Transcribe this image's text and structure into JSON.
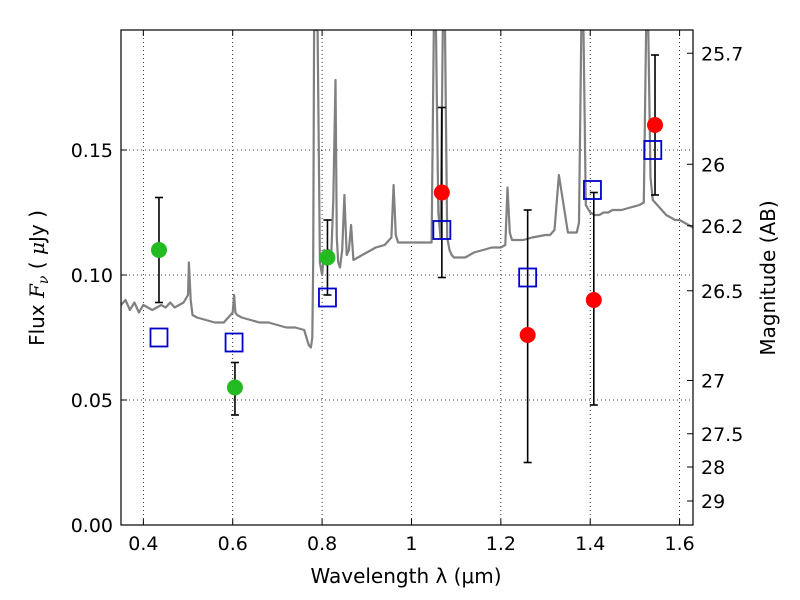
{
  "chart_data": {
    "type": "scatter",
    "title": "",
    "xlabel": "Wavelength  λ (μm)",
    "ylabel": "Flux  F_ν  ( μJy )",
    "ylabel_right": "Magnitude (AB)",
    "xlim": [
      0.35,
      1.63
    ],
    "ylim": [
      0.0,
      0.198
    ],
    "grid": true,
    "x_ticks": [
      0.4,
      0.6,
      0.8,
      1.0,
      1.2,
      1.4,
      1.6
    ],
    "x_tick_labels": [
      "0.4",
      "0.6",
      "0.8",
      "1",
      "1.2",
      "1.4",
      "1.6"
    ],
    "y_ticks": [
      0.0,
      0.05,
      0.1,
      0.15
    ],
    "y_tick_labels": [
      "0.00",
      "0.05",
      "0.10",
      "0.15"
    ],
    "right_ticks": [
      {
        "flux": 0.1887,
        "label": "25.7"
      },
      {
        "flux": 0.1443,
        "label": "26"
      },
      {
        "flux": 0.1197,
        "label": "26.2"
      },
      {
        "flux": 0.0937,
        "label": "26.5"
      },
      {
        "flux": 0.0578,
        "label": "27"
      },
      {
        "flux": 0.0365,
        "label": "27.5"
      },
      {
        "flux": 0.0232,
        "label": "28"
      },
      {
        "flux": 0.0096,
        "label": "29"
      }
    ],
    "series": [
      {
        "name": "model spectrum",
        "type": "line",
        "color": "#808080",
        "x": [
          0.35,
          0.36,
          0.37,
          0.38,
          0.39,
          0.4,
          0.41,
          0.42,
          0.43,
          0.44,
          0.45,
          0.46,
          0.47,
          0.48,
          0.49,
          0.5,
          0.502,
          0.506,
          0.51,
          0.52,
          0.54,
          0.56,
          0.58,
          0.6,
          0.603,
          0.606,
          0.61,
          0.62,
          0.64,
          0.66,
          0.68,
          0.7,
          0.72,
          0.74,
          0.76,
          0.77,
          0.775,
          0.778,
          0.78,
          0.782,
          0.785,
          0.79,
          0.795,
          0.8,
          0.805,
          0.81,
          0.815,
          0.82,
          0.825,
          0.83,
          0.833,
          0.836,
          0.84,
          0.845,
          0.85,
          0.855,
          0.86,
          0.865,
          0.87,
          0.88,
          0.89,
          0.9,
          0.92,
          0.94,
          0.955,
          0.96,
          0.965,
          0.97,
          0.99,
          1.01,
          1.03,
          1.045,
          1.05,
          1.055,
          1.06,
          1.065,
          1.07,
          1.075,
          1.08,
          1.085,
          1.09,
          1.095,
          1.1,
          1.12,
          1.14,
          1.16,
          1.18,
          1.2,
          1.21,
          1.215,
          1.22,
          1.225,
          1.23,
          1.25,
          1.27,
          1.3,
          1.31,
          1.32,
          1.33,
          1.35,
          1.37,
          1.375,
          1.38,
          1.385,
          1.39,
          1.4,
          1.41,
          1.42,
          1.43,
          1.44,
          1.45,
          1.47,
          1.49,
          1.51,
          1.52,
          1.525,
          1.53,
          1.535,
          1.54,
          1.55,
          1.56,
          1.57,
          1.58,
          1.59,
          1.6,
          1.61,
          1.62,
          1.63
        ],
        "values": [
          0.088,
          0.09,
          0.086,
          0.089,
          0.085,
          0.088,
          0.087,
          0.086,
          0.087,
          0.088,
          0.087,
          0.089,
          0.087,
          0.088,
          0.089,
          0.092,
          0.105,
          0.09,
          0.084,
          0.083,
          0.082,
          0.081,
          0.081,
          0.085,
          0.092,
          0.085,
          0.084,
          0.083,
          0.082,
          0.081,
          0.081,
          0.08,
          0.079,
          0.079,
          0.078,
          0.072,
          0.071,
          0.075,
          0.105,
          0.198,
          0.198,
          0.198,
          0.105,
          0.1,
          0.11,
          0.104,
          0.11,
          0.105,
          0.13,
          0.178,
          0.115,
          0.105,
          0.103,
          0.11,
          0.132,
          0.108,
          0.11,
          0.12,
          0.106,
          0.107,
          0.108,
          0.109,
          0.111,
          0.112,
          0.115,
          0.136,
          0.116,
          0.113,
          0.113,
          0.113,
          0.113,
          0.113,
          0.198,
          0.198,
          0.125,
          0.115,
          0.198,
          0.198,
          0.115,
          0.11,
          0.108,
          0.107,
          0.107,
          0.107,
          0.109,
          0.11,
          0.111,
          0.111,
          0.112,
          0.135,
          0.117,
          0.114,
          0.114,
          0.114,
          0.115,
          0.116,
          0.116,
          0.118,
          0.14,
          0.117,
          0.117,
          0.121,
          0.198,
          0.198,
          0.128,
          0.125,
          0.124,
          0.124,
          0.125,
          0.125,
          0.126,
          0.126,
          0.127,
          0.128,
          0.129,
          0.198,
          0.198,
          0.139,
          0.13,
          0.128,
          0.126,
          0.124,
          0.123,
          0.122,
          0.122,
          0.121,
          0.12,
          0.119
        ]
      },
      {
        "name": "green measurements",
        "type": "errorbar",
        "marker": "circle",
        "color": "#22bb22",
        "x": [
          0.435,
          0.605,
          0.812
        ],
        "values": [
          0.11,
          0.055,
          0.107
        ],
        "err_low": [
          0.089,
          0.044,
          0.092
        ],
        "err_high": [
          0.131,
          0.065,
          0.122
        ]
      },
      {
        "name": "red measurements",
        "type": "errorbar",
        "marker": "circle",
        "color": "#ff0000",
        "x": [
          1.068,
          1.26,
          1.408,
          1.545
        ],
        "values": [
          0.133,
          0.076,
          0.09,
          0.16
        ],
        "err_low": [
          0.099,
          0.025,
          0.048,
          0.132
        ],
        "err_high": [
          0.167,
          0.126,
          0.133,
          0.188
        ]
      },
      {
        "name": "model photometry",
        "type": "scatter",
        "marker": "open-square",
        "color": "#0000cc",
        "x": [
          0.435,
          0.603,
          0.812,
          1.068,
          1.26,
          1.405,
          1.54
        ],
        "values": [
          0.075,
          0.073,
          0.091,
          0.118,
          0.099,
          0.134,
          0.15
        ]
      }
    ]
  }
}
